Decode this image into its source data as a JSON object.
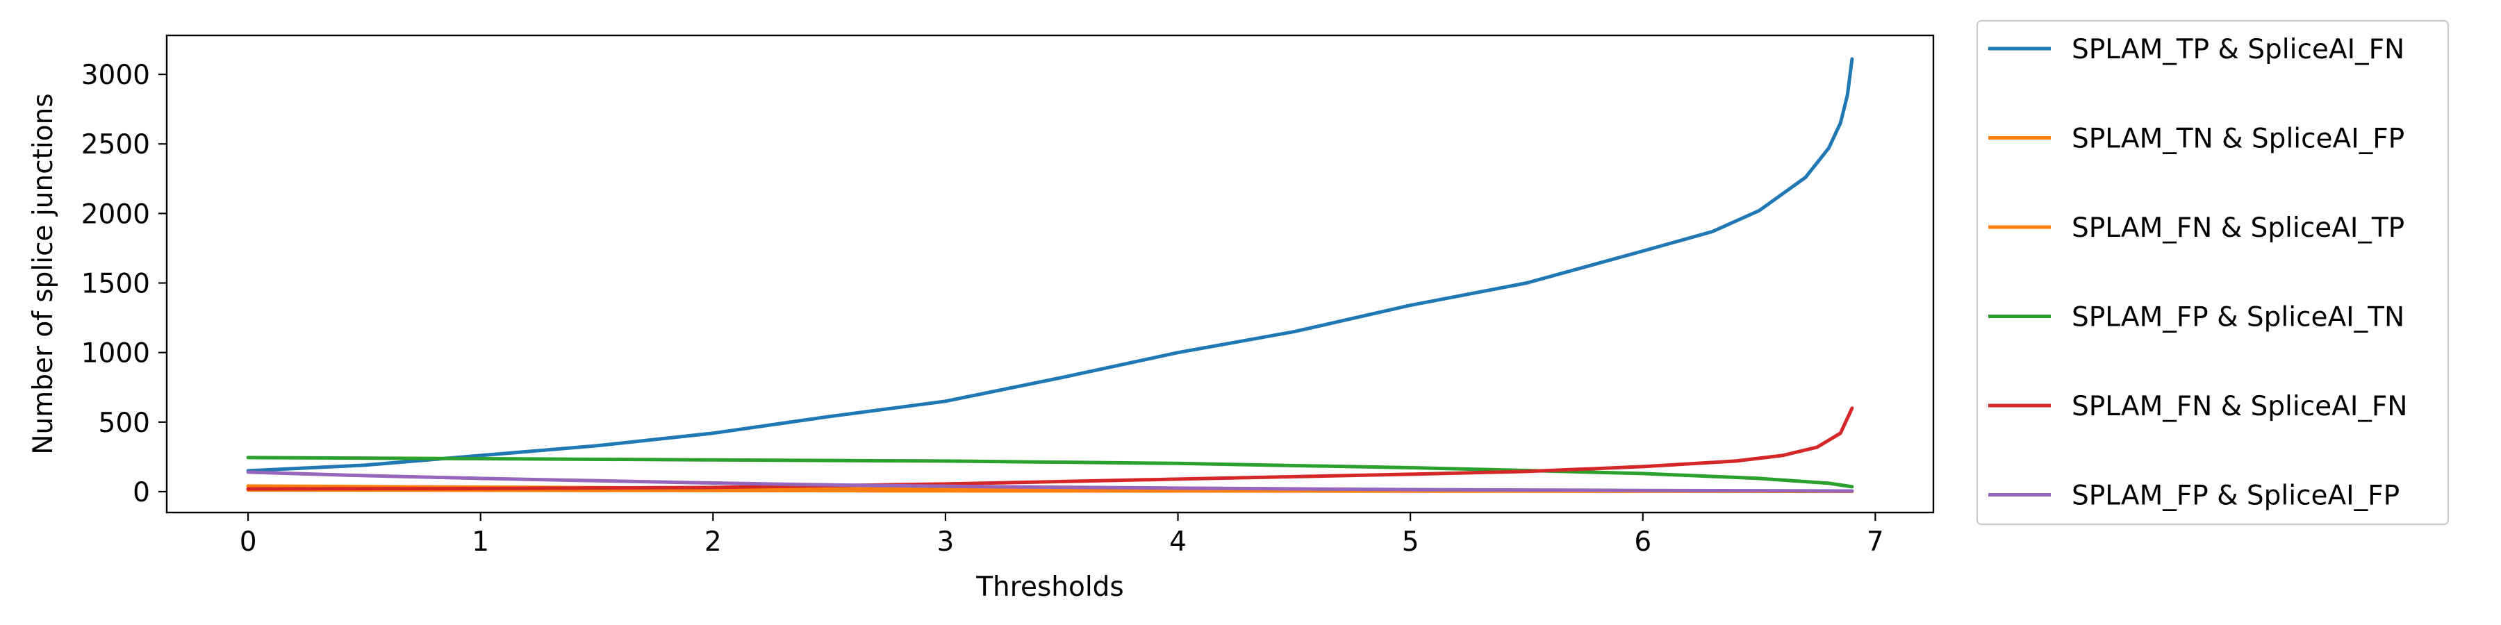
{
  "chart_data": {
    "type": "line",
    "title": "",
    "xlabel": "Thresholds",
    "ylabel": "Number of splice junctions",
    "xlim": [
      -0.35,
      7.25
    ],
    "ylim": [
      -150,
      3280
    ],
    "xticks": [
      0,
      1,
      2,
      3,
      4,
      5,
      6,
      7
    ],
    "yticks": [
      0,
      500,
      1000,
      1500,
      2000,
      2500,
      3000
    ],
    "xtick_labels": [
      "0",
      "1",
      "2",
      "3",
      "4",
      "5",
      "6",
      "7"
    ],
    "ytick_labels": [
      "0",
      "500",
      "1000",
      "1500",
      "2000",
      "2500",
      "3000"
    ],
    "grid": false,
    "legend_position": "outside-right",
    "series": [
      {
        "name": "SPLAM_TP & SpliceAI_FN",
        "color": "#1f77b4",
        "x": [
          0,
          0.5,
          1,
          1.5,
          2,
          2.5,
          3,
          3.5,
          4,
          4.5,
          5,
          5.5,
          6,
          6.3,
          6.5,
          6.7,
          6.8,
          6.85,
          6.88,
          6.9
        ],
        "y": [
          150,
          190,
          260,
          330,
          420,
          540,
          650,
          820,
          1000,
          1150,
          1340,
          1500,
          1730,
          1870,
          2020,
          2260,
          2470,
          2650,
          2850,
          3110
        ]
      },
      {
        "name": "SPLAM_TN & SpliceAI_FP",
        "color": "#ff7f0e",
        "x": [
          0,
          1,
          2,
          3,
          4,
          5,
          6,
          6.9
        ],
        "y": [
          40,
          32,
          25,
          18,
          13,
          9,
          6,
          4
        ]
      },
      {
        "name": "SPLAM_FN & SpliceAI_TP",
        "color": "#ff7f0e",
        "x": [
          0,
          1,
          2,
          3,
          4,
          5,
          6,
          6.9
        ],
        "y": [
          12,
          10,
          8,
          6,
          5,
          4,
          3,
          2
        ]
      },
      {
        "name": "SPLAM_FP & SpliceAI_TN",
        "color": "#2ca02c",
        "x": [
          0,
          1,
          2,
          3,
          4,
          5,
          5.5,
          6,
          6.5,
          6.8,
          6.9
        ],
        "y": [
          245,
          237,
          228,
          220,
          203,
          172,
          152,
          130,
          95,
          60,
          35
        ]
      },
      {
        "name": "SPLAM_FN & SpliceAI_FN",
        "color": "#d62728",
        "x": [
          0,
          1,
          2,
          3,
          4,
          5,
          5.5,
          6,
          6.4,
          6.6,
          6.75,
          6.85,
          6.9
        ],
        "y": [
          20,
          22,
          30,
          55,
          90,
          125,
          145,
          180,
          220,
          260,
          320,
          420,
          600
        ]
      },
      {
        "name": "SPLAM_FP & SpliceAI_FP",
        "color": "#9467bd",
        "x": [
          0,
          0.5,
          1,
          1.5,
          2,
          2.5,
          3,
          4,
          5,
          6,
          6.9
        ],
        "y": [
          140,
          115,
          95,
          78,
          62,
          48,
          38,
          25,
          15,
          9,
          5
        ]
      }
    ]
  }
}
